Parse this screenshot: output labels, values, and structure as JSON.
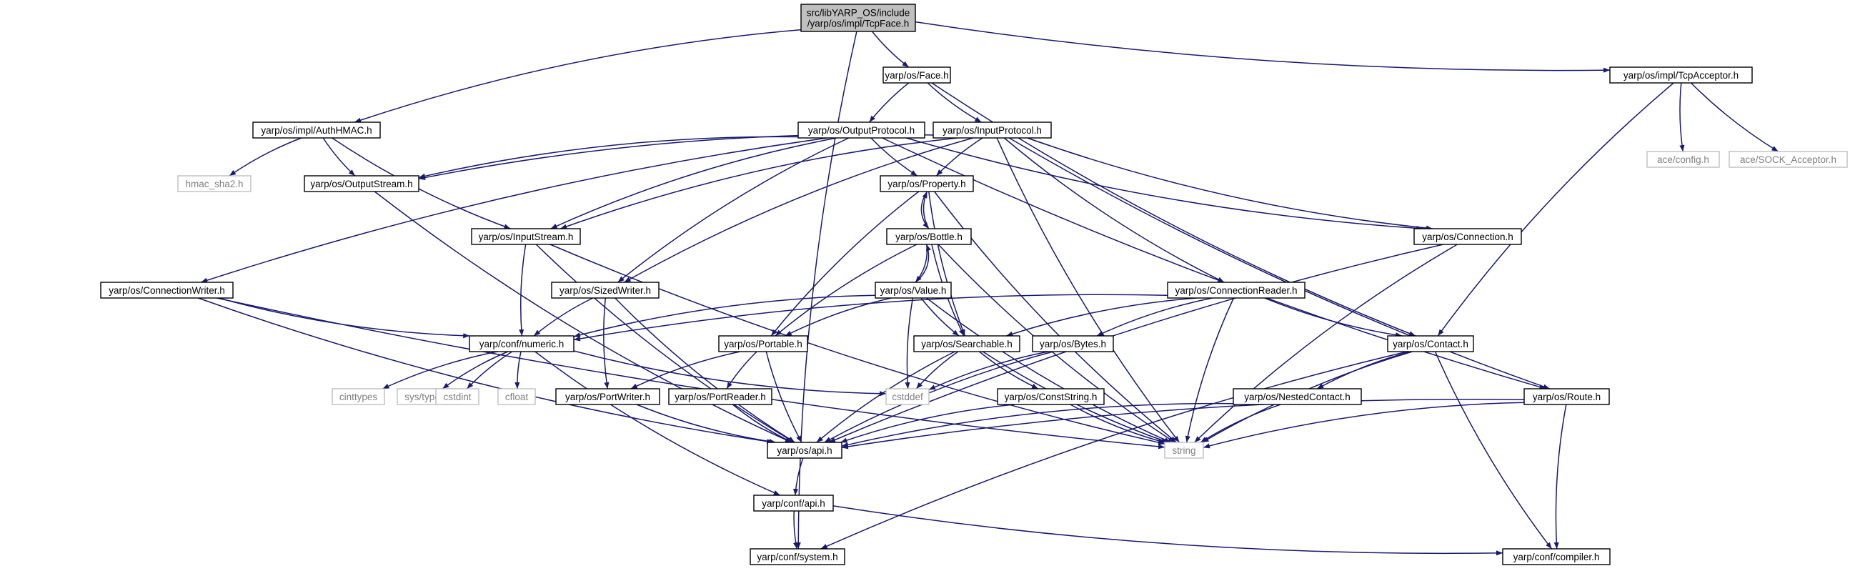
{
  "colors": {
    "edge": "#191970",
    "node_border": "#000000",
    "node_fill": "#ffffff",
    "root_fill": "#bfbfbf",
    "external_border": "#bfbfbf",
    "external_text": "#808080",
    "text": "#000000"
  },
  "nodes": [
    {
      "id": "root",
      "lines": [
        "src/libYARP_OS/include",
        "/yarp/os/impl/TcpFace.h"
      ],
      "kind": "root"
    },
    {
      "id": "face",
      "lines": [
        "yarp/os/Face.h"
      ],
      "kind": "normal"
    },
    {
      "id": "tcpacceptor",
      "lines": [
        "yarp/os/impl/TcpAcceptor.h"
      ],
      "kind": "normal"
    },
    {
      "id": "authhmac",
      "lines": [
        "yarp/os/impl/AuthHMAC.h"
      ],
      "kind": "normal"
    },
    {
      "id": "outputprotocol",
      "lines": [
        "yarp/os/OutputProtocol.h"
      ],
      "kind": "normal"
    },
    {
      "id": "inputprotocol",
      "lines": [
        "yarp/os/InputProtocol.h"
      ],
      "kind": "normal"
    },
    {
      "id": "aceconfig",
      "lines": [
        "ace/config.h"
      ],
      "kind": "external"
    },
    {
      "id": "acesock",
      "lines": [
        "ace/SOCK_Acceptor.h"
      ],
      "kind": "external"
    },
    {
      "id": "hmac",
      "lines": [
        "hmac_sha2.h"
      ],
      "kind": "external"
    },
    {
      "id": "outputstream",
      "lines": [
        "yarp/os/OutputStream.h"
      ],
      "kind": "normal"
    },
    {
      "id": "property",
      "lines": [
        "yarp/os/Property.h"
      ],
      "kind": "normal"
    },
    {
      "id": "bottle",
      "lines": [
        "yarp/os/Bottle.h"
      ],
      "kind": "normal"
    },
    {
      "id": "inputstream",
      "lines": [
        "yarp/os/InputStream.h"
      ],
      "kind": "normal"
    },
    {
      "id": "connection",
      "lines": [
        "yarp/os/Connection.h"
      ],
      "kind": "normal"
    },
    {
      "id": "connwriter",
      "lines": [
        "yarp/os/ConnectionWriter.h"
      ],
      "kind": "normal"
    },
    {
      "id": "sizedwriter",
      "lines": [
        "yarp/os/SizedWriter.h"
      ],
      "kind": "normal"
    },
    {
      "id": "value",
      "lines": [
        "yarp/os/Value.h"
      ],
      "kind": "normal"
    },
    {
      "id": "connreader",
      "lines": [
        "yarp/os/ConnectionReader.h"
      ],
      "kind": "normal"
    },
    {
      "id": "numeric",
      "lines": [
        "yarp/conf/numeric.h"
      ],
      "kind": "normal"
    },
    {
      "id": "portable",
      "lines": [
        "yarp/os/Portable.h"
      ],
      "kind": "normal"
    },
    {
      "id": "searchable",
      "lines": [
        "yarp/os/Searchable.h"
      ],
      "kind": "normal"
    },
    {
      "id": "bytes",
      "lines": [
        "yarp/os/Bytes.h"
      ],
      "kind": "normal"
    },
    {
      "id": "contact",
      "lines": [
        "yarp/os/Contact.h"
      ],
      "kind": "normal"
    },
    {
      "id": "cinttypes",
      "lines": [
        "cinttypes"
      ],
      "kind": "external"
    },
    {
      "id": "systypes",
      "lines": [
        "sys/types.h"
      ],
      "kind": "external"
    },
    {
      "id": "cstdint",
      "lines": [
        "cstdint"
      ],
      "kind": "external"
    },
    {
      "id": "cfloat",
      "lines": [
        "cfloat"
      ],
      "kind": "external"
    },
    {
      "id": "portwriter",
      "lines": [
        "yarp/os/PortWriter.h"
      ],
      "kind": "normal"
    },
    {
      "id": "portreader",
      "lines": [
        "yarp/os/PortReader.h"
      ],
      "kind": "normal"
    },
    {
      "id": "cstddef",
      "lines": [
        "cstddef"
      ],
      "kind": "external"
    },
    {
      "id": "conststring",
      "lines": [
        "yarp/os/ConstString.h"
      ],
      "kind": "normal"
    },
    {
      "id": "nestedcontact",
      "lines": [
        "yarp/os/NestedContact.h"
      ],
      "kind": "normal"
    },
    {
      "id": "route",
      "lines": [
        "yarp/os/Route.h"
      ],
      "kind": "normal"
    },
    {
      "id": "osapi",
      "lines": [
        "yarp/os/api.h"
      ],
      "kind": "normal"
    },
    {
      "id": "string",
      "lines": [
        "string"
      ],
      "kind": "external"
    },
    {
      "id": "confapi",
      "lines": [
        "yarp/conf/api.h"
      ],
      "kind": "normal"
    },
    {
      "id": "system",
      "lines": [
        "yarp/conf/system.h"
      ],
      "kind": "normal"
    },
    {
      "id": "compiler",
      "lines": [
        "yarp/conf/compiler.h"
      ],
      "kind": "normal"
    }
  ],
  "edges": [
    [
      "root",
      "face"
    ],
    [
      "root",
      "tcpacceptor"
    ],
    [
      "root",
      "authhmac"
    ],
    [
      "root",
      "system"
    ],
    [
      "face",
      "outputprotocol"
    ],
    [
      "face",
      "inputprotocol"
    ],
    [
      "face",
      "contact"
    ],
    [
      "tcpacceptor",
      "aceconfig"
    ],
    [
      "tcpacceptor",
      "acesock"
    ],
    [
      "tcpacceptor",
      "contact"
    ],
    [
      "authhmac",
      "hmac"
    ],
    [
      "authhmac",
      "outputstream"
    ],
    [
      "authhmac",
      "inputstream"
    ],
    [
      "outputprotocol",
      "outputstream"
    ],
    [
      "outputprotocol",
      "property"
    ],
    [
      "outputprotocol",
      "inputstream"
    ],
    [
      "outputprotocol",
      "connwriter"
    ],
    [
      "outputprotocol",
      "sizedwriter"
    ],
    [
      "outputprotocol",
      "connection"
    ],
    [
      "outputprotocol",
      "route"
    ],
    [
      "inputprotocol",
      "outputstream"
    ],
    [
      "inputprotocol",
      "property"
    ],
    [
      "inputprotocol",
      "inputstream"
    ],
    [
      "inputprotocol",
      "sizedwriter"
    ],
    [
      "inputprotocol",
      "connreader"
    ],
    [
      "inputprotocol",
      "connection"
    ],
    [
      "inputprotocol",
      "route"
    ],
    [
      "inputprotocol",
      "string"
    ],
    [
      "outputstream",
      "osapi"
    ],
    [
      "property",
      "bottle"
    ],
    [
      "property",
      "portable"
    ],
    [
      "property",
      "searchable"
    ],
    [
      "property",
      "string"
    ],
    [
      "bottle",
      "property"
    ],
    [
      "bottle",
      "value"
    ],
    [
      "bottle",
      "portable"
    ],
    [
      "bottle",
      "searchable"
    ],
    [
      "bottle",
      "string"
    ],
    [
      "value",
      "bottle"
    ],
    [
      "value",
      "numeric"
    ],
    [
      "value",
      "portable"
    ],
    [
      "value",
      "searchable"
    ],
    [
      "value",
      "cstddef"
    ],
    [
      "value",
      "string"
    ],
    [
      "inputstream",
      "numeric"
    ],
    [
      "inputstream",
      "osapi"
    ],
    [
      "inputstream",
      "string"
    ],
    [
      "connwriter",
      "numeric"
    ],
    [
      "connwriter",
      "osapi"
    ],
    [
      "connwriter",
      "string"
    ],
    [
      "sizedwriter",
      "numeric"
    ],
    [
      "sizedwriter",
      "portwriter"
    ],
    [
      "sizedwriter",
      "osapi"
    ],
    [
      "connection",
      "osapi"
    ],
    [
      "connection",
      "string"
    ],
    [
      "connreader",
      "numeric"
    ],
    [
      "connreader",
      "searchable"
    ],
    [
      "connreader",
      "bytes"
    ],
    [
      "connreader",
      "contact"
    ],
    [
      "connreader",
      "string"
    ],
    [
      "numeric",
      "cinttypes"
    ],
    [
      "numeric",
      "systypes"
    ],
    [
      "numeric",
      "cstdint"
    ],
    [
      "numeric",
      "cfloat"
    ],
    [
      "numeric",
      "cstddef"
    ],
    [
      "numeric",
      "confapi"
    ],
    [
      "portable",
      "portwriter"
    ],
    [
      "portable",
      "portreader"
    ],
    [
      "portable",
      "osapi"
    ],
    [
      "searchable",
      "cstddef"
    ],
    [
      "searchable",
      "conststring"
    ],
    [
      "searchable",
      "osapi"
    ],
    [
      "searchable",
      "string"
    ],
    [
      "bytes",
      "cstddef"
    ],
    [
      "bytes",
      "osapi"
    ],
    [
      "contact",
      "nestedcontact"
    ],
    [
      "contact",
      "string"
    ],
    [
      "contact",
      "system"
    ],
    [
      "contact",
      "compiler"
    ],
    [
      "portwriter",
      "osapi"
    ],
    [
      "portreader",
      "osapi"
    ],
    [
      "conststring",
      "osapi"
    ],
    [
      "conststring",
      "string"
    ],
    [
      "nestedcontact",
      "osapi"
    ],
    [
      "nestedcontact",
      "string"
    ],
    [
      "route",
      "osapi"
    ],
    [
      "route",
      "string"
    ],
    [
      "route",
      "compiler"
    ],
    [
      "osapi",
      "confapi"
    ],
    [
      "confapi",
      "system"
    ],
    [
      "confapi",
      "compiler"
    ]
  ]
}
